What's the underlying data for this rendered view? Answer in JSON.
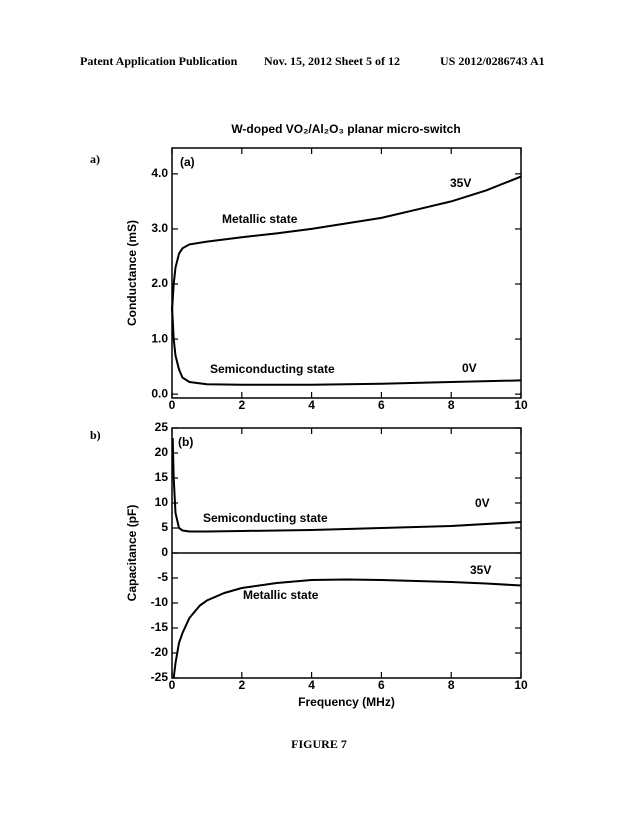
{
  "header": {
    "left": "Patent Application Publication",
    "middle": "Nov. 15, 2012  Sheet 5 of 12",
    "right": "US 2012/0286743 A1"
  },
  "panel_labels": [
    "a)",
    "b)"
  ],
  "figure_caption": "FIGURE 7",
  "chart_data": [
    {
      "type": "line",
      "title": "W-doped VO₂/Al₂O₃ planar micro-switch",
      "ylabel": "Conductance (mS)",
      "xlim": [
        0,
        10
      ],
      "xticks": [
        0,
        2,
        4,
        6,
        8,
        10
      ],
      "ylim": [
        -0.07,
        4.47
      ],
      "yticks": [
        {
          "value": 0,
          "label": "0.0"
        },
        {
          "value": 1,
          "label": "1.0"
        },
        {
          "value": 2,
          "label": "2.0"
        },
        {
          "value": 3,
          "label": "3.0"
        },
        {
          "value": 4,
          "label": "4.0"
        }
      ],
      "annotations": [
        "(a)",
        "Metallic state",
        "35V",
        "Semiconducting state",
        "0V"
      ],
      "series": [
        {
          "name": "35V",
          "color": "#000000",
          "x": [
            0,
            0.05,
            0.1,
            0.2,
            0.3,
            0.5,
            1,
            2,
            3,
            4,
            5,
            6,
            7,
            8,
            9,
            10
          ],
          "values": [
            1.5,
            2.0,
            2.3,
            2.55,
            2.65,
            2.72,
            2.77,
            2.85,
            2.92,
            3.0,
            3.1,
            3.2,
            3.35,
            3.5,
            3.7,
            3.95
          ]
        },
        {
          "name": "0V",
          "color": "#000000",
          "x": [
            0,
            0.05,
            0.1,
            0.2,
            0.3,
            0.5,
            1,
            2,
            4,
            6,
            8,
            10
          ],
          "values": [
            1.6,
            1.0,
            0.7,
            0.45,
            0.3,
            0.22,
            0.18,
            0.17,
            0.17,
            0.19,
            0.22,
            0.25
          ]
        }
      ]
    },
    {
      "type": "line",
      "xlabel": "Frequency (MHz)",
      "ylabel": "Capacitance (pF)",
      "xlim": [
        0,
        10
      ],
      "xticks": [
        0,
        2,
        4,
        6,
        8,
        10
      ],
      "ylim": [
        -25,
        25
      ],
      "yticks": [
        -25,
        -20,
        -15,
        -10,
        -5,
        0,
        5,
        10,
        15,
        20,
        25
      ],
      "zero_line": true,
      "annotations": [
        "(b)",
        "Semiconducting state",
        "0V",
        "35V",
        "Metallic state"
      ],
      "series": [
        {
          "name": "0V",
          "color": "#000000",
          "x": [
            0.02,
            0.05,
            0.1,
            0.2,
            0.3,
            0.5,
            1,
            2,
            4,
            6,
            8,
            10
          ],
          "values": [
            23,
            15,
            8,
            5,
            4.5,
            4.3,
            4.3,
            4.4,
            4.6,
            5,
            5.4,
            6.2
          ]
        },
        {
          "name": "35V",
          "color": "#000000",
          "x": [
            0.05,
            0.1,
            0.2,
            0.3,
            0.5,
            0.8,
            1,
            1.5,
            2,
            3,
            4,
            5,
            6,
            7,
            8,
            9,
            10
          ],
          "values": [
            -25,
            -22,
            -18,
            -16,
            -13,
            -10.5,
            -9.5,
            -8,
            -7,
            -6,
            -5.4,
            -5.3,
            -5.4,
            -5.6,
            -5.8,
            -6.1,
            -6.5
          ]
        }
      ]
    }
  ]
}
